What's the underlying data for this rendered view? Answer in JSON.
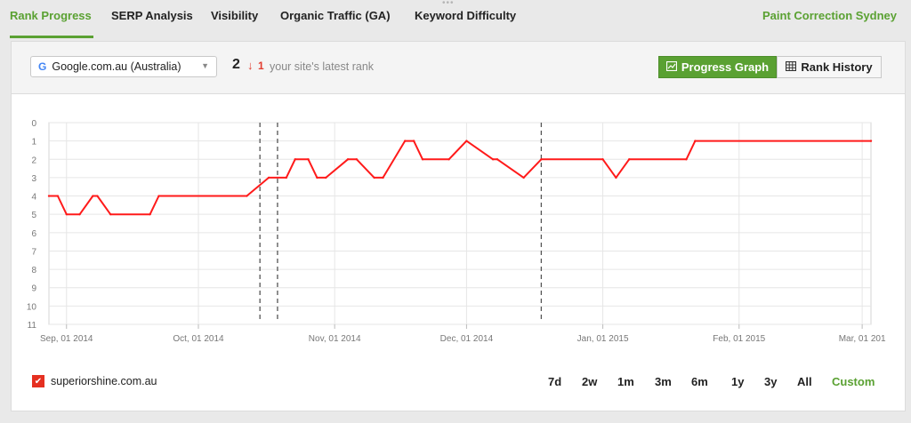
{
  "tabs": [
    {
      "label": "Rank Progress",
      "active": true
    },
    {
      "label": "SERP Analysis",
      "active": false
    },
    {
      "label": "Visibility",
      "active": false
    },
    {
      "label": "Organic Traffic (GA)",
      "active": false
    },
    {
      "label": "Keyword Difficulty",
      "active": false
    }
  ],
  "site_name": "Paint Correction Sydney",
  "toolbar": {
    "engine": "Google.com.au (Australia)",
    "engine_icon": "google-g-icon",
    "latest_rank": "2",
    "rank_change": "1",
    "rank_change_direction": "down",
    "rank_caption": "your site's latest rank",
    "progress_graph_label": "Progress Graph",
    "rank_history_label": "Rank History"
  },
  "legend": {
    "label": "superiorshine.com.au",
    "checked": true,
    "color": "#e53021"
  },
  "ranges": [
    {
      "label": "7d",
      "active": false
    },
    {
      "label": "2w",
      "active": false
    },
    {
      "label": "1m",
      "active": false
    },
    {
      "label": "3m",
      "active": false
    },
    {
      "label": "6m",
      "active": false
    },
    {
      "label": "1y",
      "active": false
    },
    {
      "label": "3y",
      "active": false
    },
    {
      "label": "All",
      "active": false
    },
    {
      "label": "Custom",
      "active": true
    }
  ],
  "chart_data": {
    "type": "line",
    "title": "",
    "xlabel": "",
    "ylabel": "",
    "y_reversed": true,
    "ylim": [
      0,
      11
    ],
    "yticks": [
      "0",
      "1",
      "2",
      "3",
      "4",
      "5",
      "6",
      "7",
      "8",
      "9",
      "10",
      "11"
    ],
    "xlim": [
      "2014-08-28",
      "2015-03-03"
    ],
    "xticks": [
      {
        "date": "2014-09-01",
        "label": "Sep, 01 2014"
      },
      {
        "date": "2014-10-01",
        "label": "Oct, 01 2014"
      },
      {
        "date": "2014-11-01",
        "label": "Nov, 01 2014"
      },
      {
        "date": "2014-12-01",
        "label": "Dec, 01 2014"
      },
      {
        "date": "2015-01-01",
        "label": "Jan, 01 2015"
      },
      {
        "date": "2015-02-01",
        "label": "Feb, 01 2015"
      },
      {
        "date": "2015-03-01",
        "label": "Mar, 01 201"
      }
    ],
    "grid": true,
    "markers_dates": [
      "2014-10-15",
      "2014-10-19",
      "2014-12-18"
    ],
    "series": [
      {
        "name": "superiorshine.com.au",
        "color": "#ff1a1a",
        "points": [
          [
            "2014-08-28",
            4
          ],
          [
            "2014-08-30",
            4
          ],
          [
            "2014-09-01",
            5
          ],
          [
            "2014-09-04",
            5
          ],
          [
            "2014-09-07",
            4
          ],
          [
            "2014-09-08",
            4
          ],
          [
            "2014-09-11",
            5
          ],
          [
            "2014-09-20",
            5
          ],
          [
            "2014-09-22",
            4
          ],
          [
            "2014-10-12",
            4
          ],
          [
            "2014-10-17",
            3
          ],
          [
            "2014-10-21",
            3
          ],
          [
            "2014-10-23",
            2
          ],
          [
            "2014-10-26",
            2
          ],
          [
            "2014-10-28",
            3
          ],
          [
            "2014-10-30",
            3
          ],
          [
            "2014-11-04",
            2
          ],
          [
            "2014-11-06",
            2
          ],
          [
            "2014-11-10",
            3
          ],
          [
            "2014-11-12",
            3
          ],
          [
            "2014-11-17",
            1
          ],
          [
            "2014-11-19",
            1
          ],
          [
            "2014-11-21",
            2
          ],
          [
            "2014-11-27",
            2
          ],
          [
            "2014-12-01",
            1
          ],
          [
            "2014-12-07",
            2
          ],
          [
            "2014-12-08",
            2
          ],
          [
            "2014-12-14",
            3
          ],
          [
            "2014-12-18",
            2
          ],
          [
            "2015-01-01",
            2
          ],
          [
            "2015-01-04",
            3
          ],
          [
            "2015-01-07",
            2
          ],
          [
            "2015-01-20",
            2
          ],
          [
            "2015-01-22",
            1
          ],
          [
            "2015-03-03",
            1
          ]
        ]
      }
    ]
  }
}
